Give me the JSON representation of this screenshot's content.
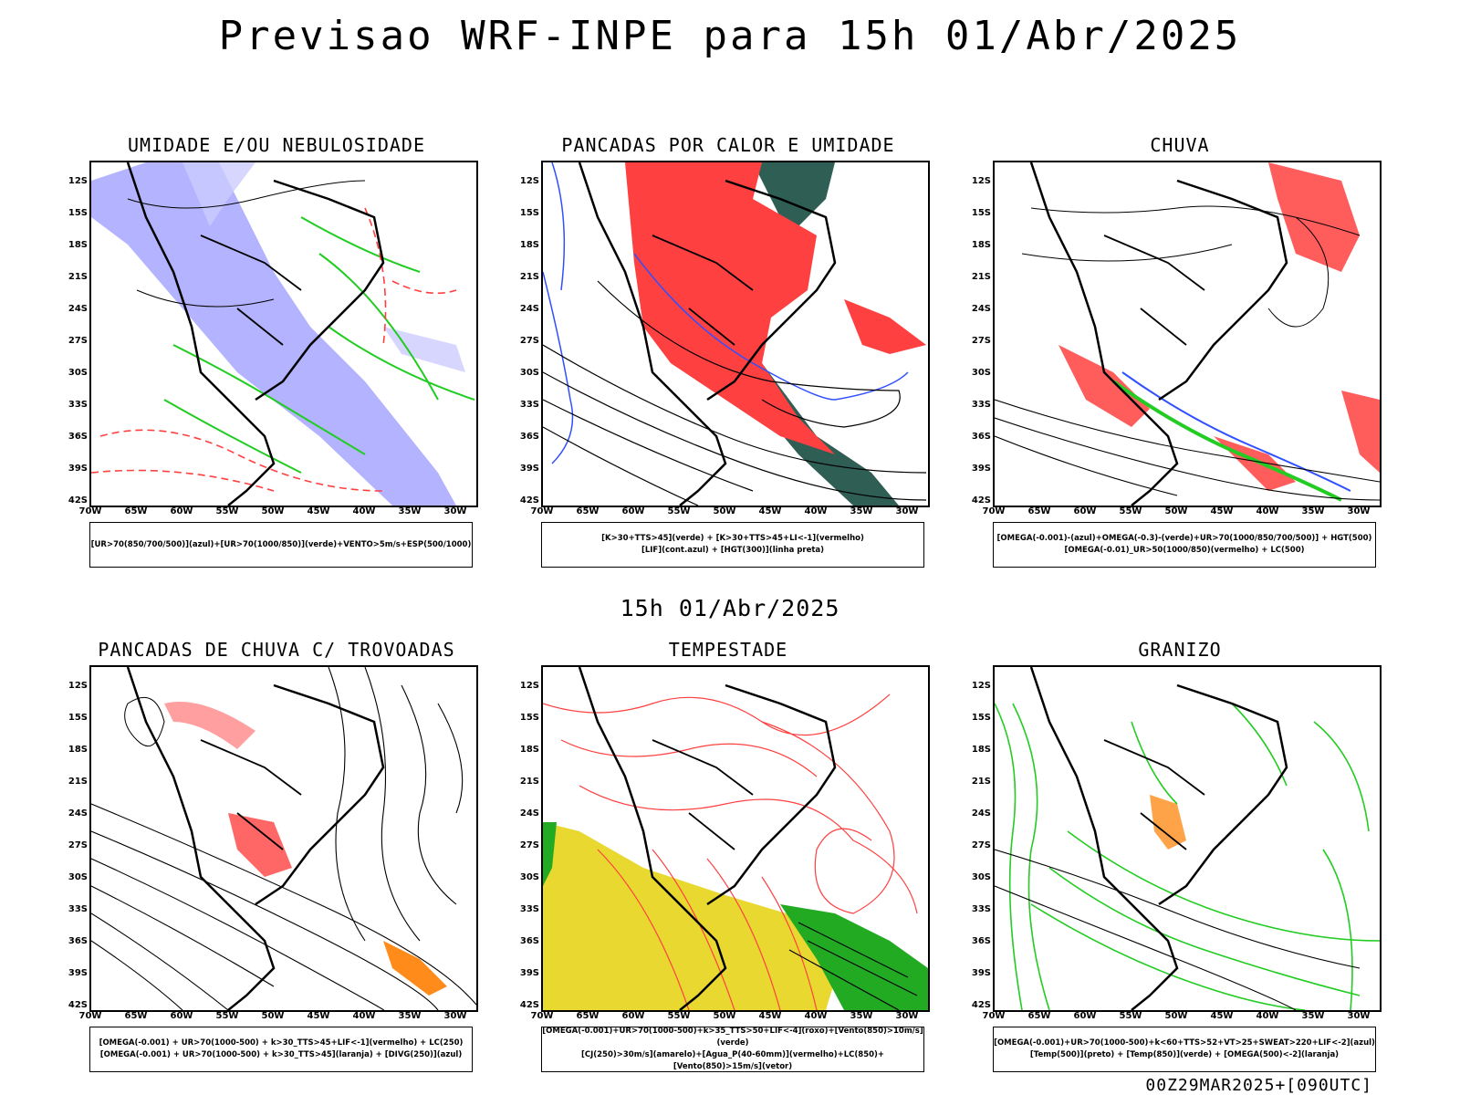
{
  "title": "Previsao WRF-INPE  para 15h 01/Abr/2025",
  "mid_date": "15h 01/Abr/2025",
  "footer": "00Z29MAR2025+[090UTC]",
  "axes": {
    "lat_ticks": [
      "12S",
      "15S",
      "18S",
      "21S",
      "24S",
      "27S",
      "30S",
      "33S",
      "36S",
      "39S",
      "42S"
    ],
    "lon_ticks": [
      "70W",
      "65W",
      "60W",
      "55W",
      "50W",
      "45W",
      "40W",
      "35W",
      "30W"
    ]
  },
  "colors": {
    "blue": "#8080ff",
    "green": "#22cc22",
    "red": "#ff4040",
    "orange": "#ff8c1a",
    "yellow": "#e8d830",
    "darkgreen": "#2f5e55"
  },
  "panels": [
    {
      "title": "UMIDADE E/OU NEBULOSIDADE",
      "legend": [
        "[UR>70(850/700/500)](azul)+[UR>70(1000/850)](verde)+VENTO>5m/s+ESP(500/1000)"
      ]
    },
    {
      "title": "PANCADAS POR CALOR E UMIDADE",
      "legend": [
        "[K>30+TTS>45](verde)  +  [K>30+TTS>45+LI<-1](vermelho)",
        "[LIF](cont.azul)  +  [HGT(300)](linha preta)"
      ]
    },
    {
      "title": "CHUVA",
      "legend": [
        "[OMEGA(-0.001)-(azul)+OMEGA(-0.3)-(verde)+UR>70(1000/850/700/500)]  +  HGT(500)",
        "[OMEGA(-0.01)_UR>50(1000/850)(vermelho)  +  LC(500)"
      ]
    },
    {
      "title": "PANCADAS DE CHUVA C/ TROVOADAS",
      "legend": [
        "[OMEGA(-0.001)  +  UR>70(1000-500)  +  k>30_TTS>45+LIF<-1](vermelho)  +  LC(250)",
        "[OMEGA(-0.001)  +  UR>70(1000-500)  +  k>30_TTS>45](laranja)  +  [DIVG(250)](azul)"
      ]
    },
    {
      "title": "TEMPESTADE",
      "legend": [
        "[OMEGA(-0.001)+UR>70(1000-500)+k>35_TTS>50+LIF<-4](roxo)+[Vento(850)>10m/s](verde)",
        "[CJ(250)>30m/s](amarelo)+[Agua_P(40-60mm)](vermelho)+LC(850)+[Vento(850)>15m/s](vetor)"
      ]
    },
    {
      "title": "GRANIZO",
      "legend": [
        "[OMEGA(-0.001)+UR>70(1000-500)+k<60+TTS>52+VT>25+SWEAT>220+LIF<-2](azul)",
        "[Temp(500)](preto)  +  [Temp(850)](verde)  +  [OMEGA(500)<-2](laranja)"
      ]
    }
  ]
}
